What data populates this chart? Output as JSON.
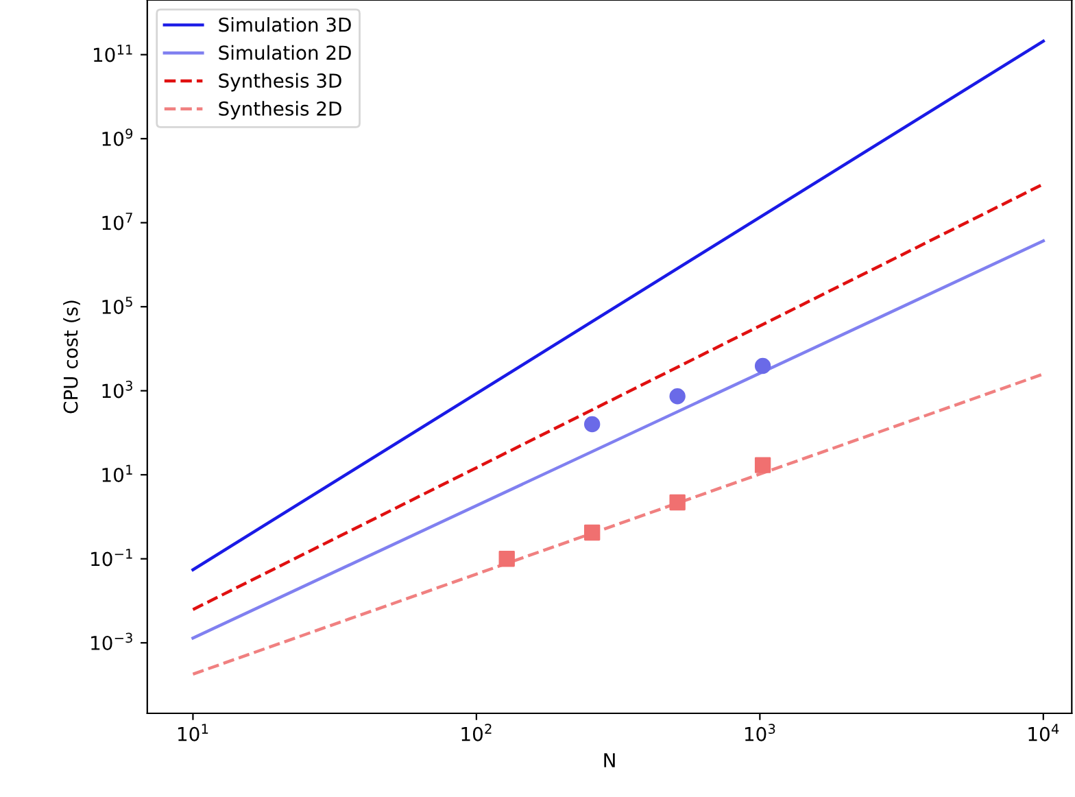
{
  "chart_data": {
    "type": "line",
    "xlabel": "N",
    "ylabel": "CPU cost (s)",
    "log": "xy",
    "legend": "top left",
    "grid": false,
    "xlim": [
      6.9,
      12600
    ],
    "ylim": [
      2.1e-05,
      2000000000000.0
    ],
    "xticks": [
      {
        "value": 10,
        "label": "10$^{1}$"
      },
      {
        "value": 100,
        "label": "10$^{2}$"
      },
      {
        "value": 1000,
        "label": "10$^{3}$"
      },
      {
        "value": 10000,
        "label": "10$^{4}$"
      }
    ],
    "yticks": [
      {
        "value": 0.001,
        "label": "10$^{−3}$"
      },
      {
        "value": 0.1,
        "label": "10$^{−1}$"
      },
      {
        "value": 10,
        "label": "10$^{1}$"
      },
      {
        "value": 1000,
        "label": "10$^{3}$"
      },
      {
        "value": 100000,
        "label": "10$^{5}$"
      },
      {
        "value": 10000000,
        "label": "10$^{7}$"
      },
      {
        "value": 1000000000,
        "label": "10$^{9}$"
      },
      {
        "value": 100000000000,
        "label": "10$^{11}$"
      }
    ],
    "series": [
      {
        "name": "Simulation 3D",
        "line_style": "solid",
        "color": "#1a1ae6",
        "x": [
          10,
          10000
        ],
        "values": [
          0.055,
          210000000000.0
        ]
      },
      {
        "name": "Simulation 2D",
        "line_style": "solid",
        "color": "#8080f0",
        "x": [
          10,
          10000
        ],
        "values": [
          0.0013,
          3700000.0
        ]
      },
      {
        "name": "Synthesis 3D",
        "line_style": "dashed",
        "color": "#e01010",
        "x": [
          10,
          10000
        ],
        "values": [
          0.0062,
          83000000.0
        ]
      },
      {
        "name": "Synthesis 2D",
        "line_style": "dashed",
        "color": "#f08080",
        "x": [
          10,
          10000
        ],
        "values": [
          0.00018,
          2500
        ]
      },
      {
        "type": "scatter",
        "marker": "circle",
        "color": "#6a6ae8",
        "x": [
          256,
          512,
          1024
        ],
        "values": [
          160,
          740,
          3900
        ]
      },
      {
        "type": "scatter",
        "marker": "square",
        "color": "#f07070",
        "x": [
          128,
          256,
          512,
          1024
        ],
        "values": [
          0.1,
          0.42,
          2.2,
          17
        ]
      }
    ]
  }
}
